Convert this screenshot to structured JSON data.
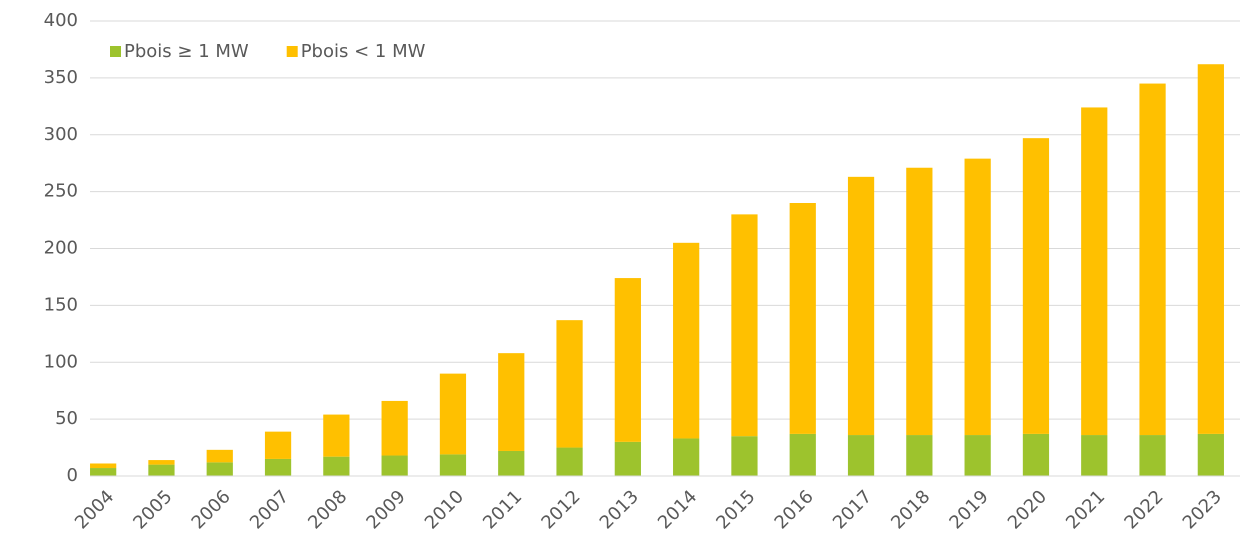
{
  "chart_data": {
    "type": "stacked_bar",
    "categories": [
      "2004",
      "2005",
      "2006",
      "2007",
      "2008",
      "2009",
      "2010",
      "2011",
      "2012",
      "2013",
      "2014",
      "2015",
      "2016",
      "2017",
      "2018",
      "2019",
      "2020",
      "2021",
      "2022",
      "2023"
    ],
    "series": [
      {
        "name": "Pbois ≥ 1 MW",
        "color": "#9dc32d",
        "values": [
          7,
          10,
          12,
          15,
          17,
          18,
          19,
          22,
          25,
          30,
          33,
          35,
          37,
          36,
          36,
          36,
          37,
          36,
          36,
          37
        ]
      },
      {
        "name": "Pbois < 1 MW",
        "color": "#ffc000",
        "values": [
          4,
          4,
          11,
          24,
          37,
          48,
          71,
          86,
          112,
          144,
          172,
          195,
          203,
          227,
          235,
          243,
          260,
          288,
          309,
          325
        ]
      }
    ],
    "ylim": [
      0,
      400
    ],
    "yticks": [
      0,
      50,
      100,
      150,
      200,
      250,
      300,
      350,
      400
    ],
    "grid": true,
    "legend": "upper left"
  }
}
